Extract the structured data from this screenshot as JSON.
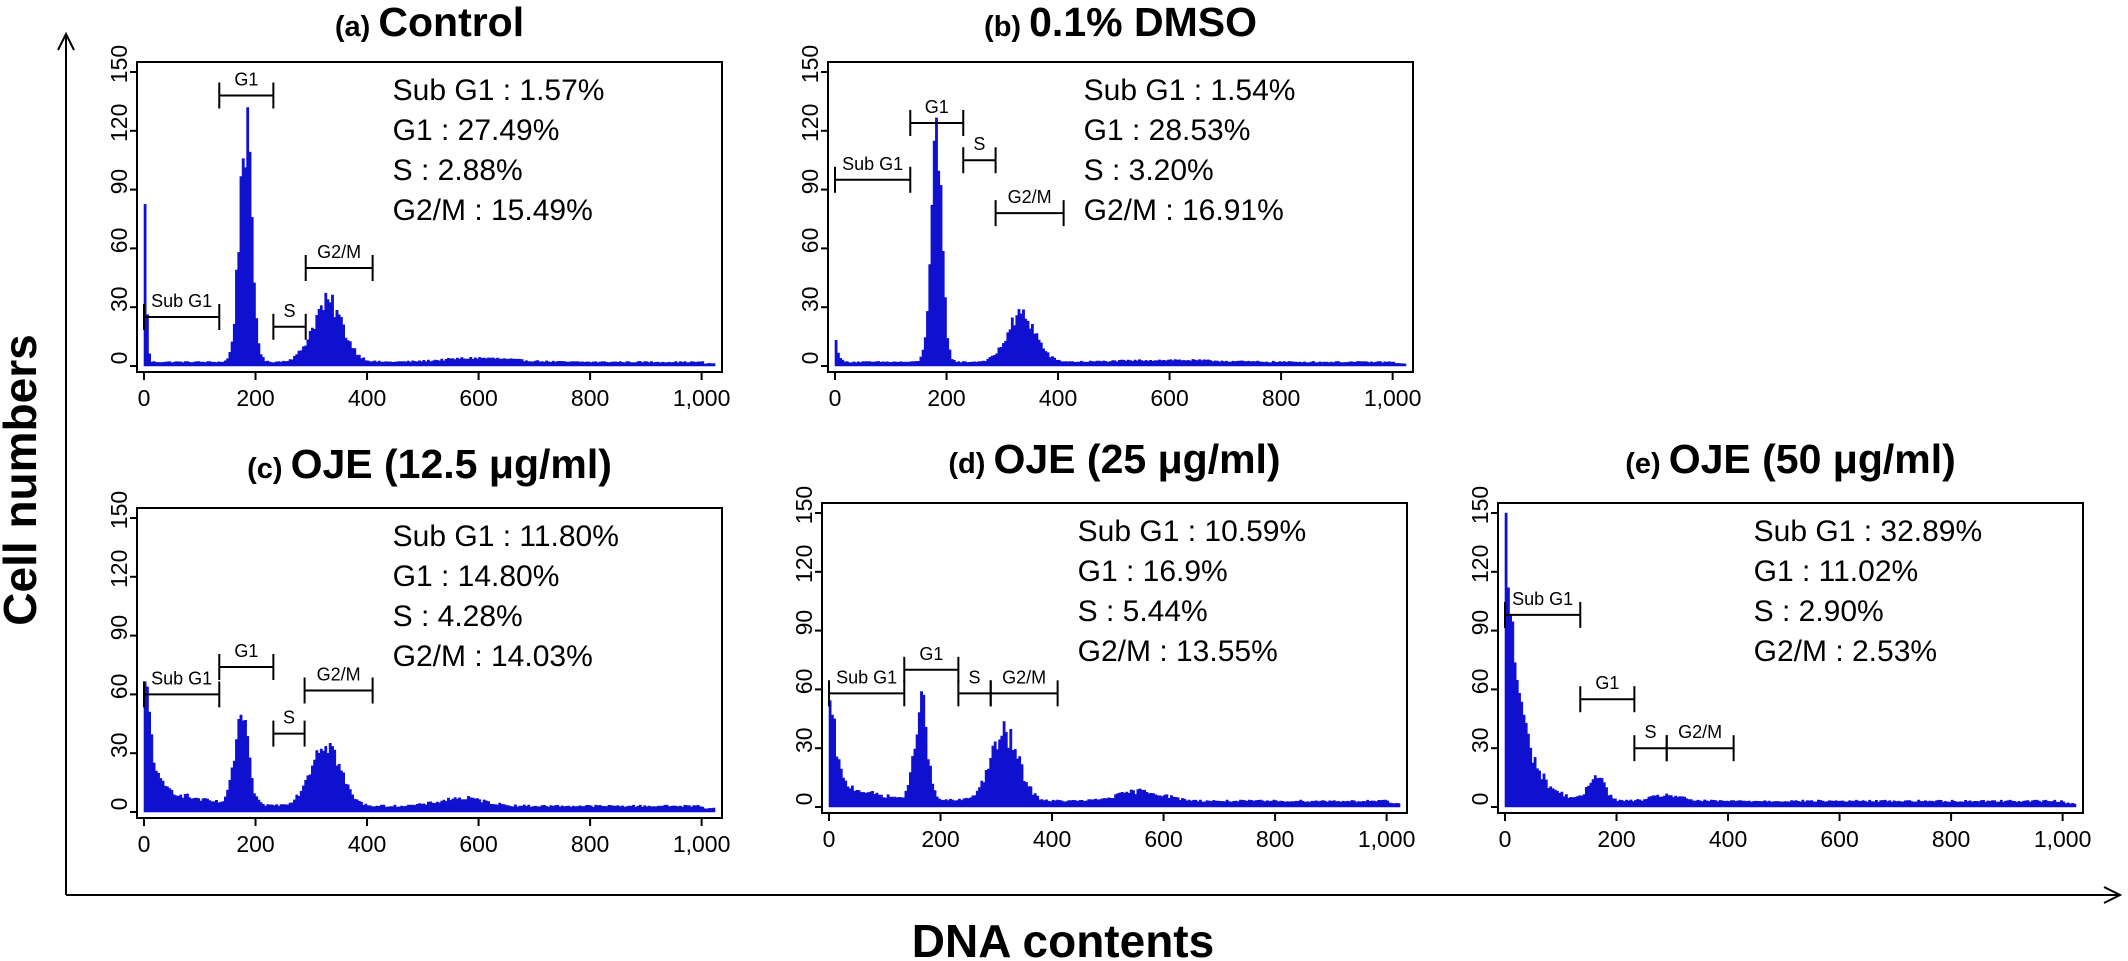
{
  "figure": {
    "xlabel": "DNA contents",
    "ylabel": "Cell numbers"
  },
  "chart_data": [
    {
      "type": "area",
      "panel": "(a)",
      "title": "Control",
      "xlim": [
        0,
        1024
      ],
      "ylim": [
        0,
        150
      ],
      "x_ticks": [
        0,
        200,
        400,
        600,
        800,
        1000
      ],
      "x_tick_labels": [
        "0",
        "200",
        "400",
        "600",
        "800",
        "1,000"
      ],
      "y_ticks": [
        0,
        30,
        60,
        90,
        120,
        150
      ],
      "y_tick_labels": [
        "0",
        "30",
        "60",
        "90",
        "120",
        "150"
      ],
      "color": "#1010d0",
      "stats": [
        "Sub G1 : 1.57%",
        "G1 : 27.49%",
        "S : 2.88%",
        "G2/M : 15.49%"
      ],
      "gates": [
        {
          "label": "Sub G1",
          "x0": 0,
          "x1": 135,
          "y": 25
        },
        {
          "label": "G1",
          "x0": 135,
          "x1": 232,
          "y": 138
        },
        {
          "label": "S",
          "x0": 232,
          "x1": 290,
          "y": 20
        },
        {
          "label": "G2/M",
          "x0": 290,
          "x1": 410,
          "y": 50
        }
      ],
      "peaks": [
        {
          "x": 0,
          "height": 84,
          "width": 4
        },
        {
          "x": 182,
          "height": 118,
          "width": 11
        },
        {
          "x": 330,
          "height": 30,
          "width": 27
        },
        {
          "x": 600,
          "height": 2,
          "width": 60
        }
      ],
      "baseline": 3,
      "baseline_decay": 1,
      "floor": 2
    },
    {
      "type": "area",
      "panel": "(b)",
      "title": "0.1% DMSO",
      "xlim": [
        0,
        1024
      ],
      "ylim": [
        0,
        150
      ],
      "x_ticks": [
        0,
        200,
        400,
        600,
        800,
        1000
      ],
      "x_tick_labels": [
        "0",
        "200",
        "400",
        "600",
        "800",
        "1,000"
      ],
      "y_ticks": [
        0,
        30,
        60,
        90,
        120,
        150
      ],
      "y_tick_labels": [
        "0",
        "30",
        "60",
        "90",
        "120",
        "150"
      ],
      "color": "#1010d0",
      "stats": [
        "Sub G1 : 1.54%",
        "G1 : 28.53%",
        "S : 3.20%",
        "G2/M : 16.91%"
      ],
      "gates": [
        {
          "label": "Sub G1",
          "x0": 0,
          "x1": 135,
          "y": 95
        },
        {
          "label": "G1",
          "x0": 135,
          "x1": 230,
          "y": 124
        },
        {
          "label": "S",
          "x0": 230,
          "x1": 288,
          "y": 105
        },
        {
          "label": "G2/M",
          "x0": 288,
          "x1": 410,
          "y": 78
        }
      ],
      "peaks": [
        {
          "x": 0,
          "height": 10,
          "width": 6
        },
        {
          "x": 182,
          "height": 106,
          "width": 10
        },
        {
          "x": 335,
          "height": 24,
          "width": 25
        },
        {
          "x": 600,
          "height": 1,
          "width": 80
        }
      ],
      "baseline": 4,
      "baseline_decay": 1,
      "floor": 2
    },
    {
      "type": "area",
      "panel": "(c)",
      "title": "OJE (12.5 μg/ml)",
      "xlim": [
        0,
        1024
      ],
      "ylim": [
        0,
        150
      ],
      "x_ticks": [
        0,
        200,
        400,
        600,
        800,
        1000
      ],
      "x_tick_labels": [
        "0",
        "200",
        "400",
        "600",
        "800",
        "1,000"
      ],
      "y_ticks": [
        0,
        30,
        60,
        90,
        120,
        150
      ],
      "y_tick_labels": [
        "0",
        "30",
        "60",
        "90",
        "120",
        "150"
      ],
      "color": "#1010d0",
      "stats": [
        "Sub G1 : 11.80%",
        "G1 : 14.80%",
        "S : 4.28%",
        "G2/M : 14.03%"
      ],
      "gates": [
        {
          "label": "Sub G1",
          "x0": 0,
          "x1": 135,
          "y": 60
        },
        {
          "label": "G1",
          "x0": 135,
          "x1": 232,
          "y": 74
        },
        {
          "label": "S",
          "x0": 232,
          "x1": 288,
          "y": 40
        },
        {
          "label": "G2/M",
          "x0": 288,
          "x1": 410,
          "y": 62
        }
      ],
      "peaks": [
        {
          "x": 3,
          "height": 40,
          "width": 10
        },
        {
          "x": 175,
          "height": 44,
          "width": 12
        },
        {
          "x": 325,
          "height": 33,
          "width": 26
        },
        {
          "x": 570,
          "height": 4,
          "width": 40
        }
      ],
      "baseline": 18,
      "baseline_decay": 60,
      "floor": 3
    },
    {
      "type": "area",
      "panel": "(d)",
      "title": "OJE (25 μg/ml)",
      "xlim": [
        0,
        1024
      ],
      "ylim": [
        0,
        150
      ],
      "x_ticks": [
        0,
        200,
        400,
        600,
        800,
        1000
      ],
      "x_tick_labels": [
        "0",
        "200",
        "400",
        "600",
        "800",
        "1,000"
      ],
      "y_ticks": [
        0,
        30,
        60,
        90,
        120,
        150
      ],
      "y_tick_labels": [
        "0",
        "30",
        "60",
        "90",
        "120",
        "150"
      ],
      "color": "#1010d0",
      "stats": [
        "Sub G1 : 10.59%",
        "G1 : 16.9%",
        "S : 5.44%",
        "G2/M : 13.55%"
      ],
      "gates": [
        {
          "label": "Sub G1",
          "x0": 0,
          "x1": 135,
          "y": 58
        },
        {
          "label": "G1",
          "x0": 135,
          "x1": 232,
          "y": 70
        },
        {
          "label": "S",
          "x0": 232,
          "x1": 290,
          "y": 58
        },
        {
          "label": "G2/M",
          "x0": 290,
          "x1": 410,
          "y": 58
        }
      ],
      "peaks": [
        {
          "x": 2,
          "height": 32,
          "width": 10
        },
        {
          "x": 165,
          "height": 50,
          "width": 11
        },
        {
          "x": 315,
          "height": 34,
          "width": 25
        },
        {
          "x": 560,
          "height": 5,
          "width": 40
        }
      ],
      "baseline": 14,
      "baseline_decay": 60,
      "floor": 3
    },
    {
      "type": "area",
      "panel": "(e)",
      "title": "OJE (50 μg/ml)",
      "xlim": [
        0,
        1024
      ],
      "ylim": [
        0,
        150
      ],
      "x_ticks": [
        0,
        200,
        400,
        600,
        800,
        1000
      ],
      "x_tick_labels": [
        "0",
        "200",
        "400",
        "600",
        "800",
        "1,000"
      ],
      "y_ticks": [
        0,
        30,
        60,
        90,
        120,
        150
      ],
      "y_tick_labels": [
        "0",
        "30",
        "60",
        "90",
        "120",
        "150"
      ],
      "color": "#1010d0",
      "stats": [
        "Sub G1 : 32.89%",
        "G1 : 11.02%",
        "S : 2.90%",
        "G2/M : 2.53%"
      ],
      "gates": [
        {
          "label": "Sub G1",
          "x0": 0,
          "x1": 135,
          "y": 98
        },
        {
          "label": "G1",
          "x0": 135,
          "x1": 232,
          "y": 55
        },
        {
          "label": "S",
          "x0": 232,
          "x1": 290,
          "y": 30
        },
        {
          "label": "G2/M",
          "x0": 290,
          "x1": 410,
          "y": 30
        }
      ],
      "peaks": [
        {
          "x": 165,
          "height": 14,
          "width": 13
        },
        {
          "x": 290,
          "height": 3,
          "width": 25
        }
      ],
      "baseline": 140,
      "baseline_decay": 28,
      "floor": 3
    }
  ]
}
